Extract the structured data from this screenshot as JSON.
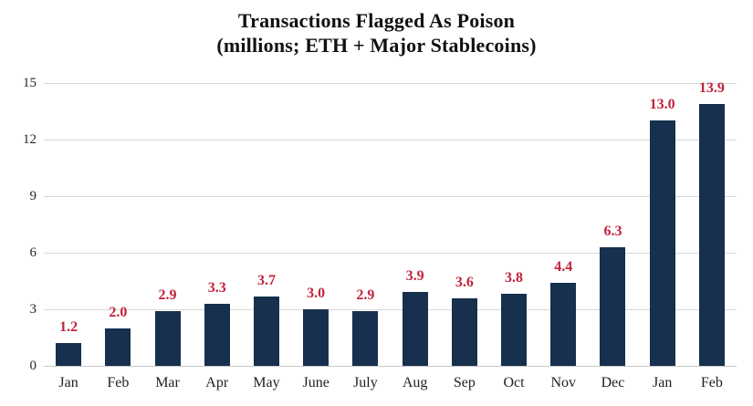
{
  "chart_data": {
    "type": "bar",
    "title": "Transactions Flagged As Poison",
    "subtitle": "(millions; ETH + Major Stablecoins)",
    "categories": [
      "Jan",
      "Feb",
      "Mar",
      "Apr",
      "May",
      "June",
      "July",
      "Aug",
      "Sep",
      "Oct",
      "Nov",
      "Dec",
      "Jan",
      "Feb"
    ],
    "values": [
      1.2,
      2.0,
      2.9,
      3.3,
      3.7,
      3.0,
      2.9,
      3.9,
      3.6,
      3.8,
      4.4,
      6.3,
      13.0,
      13.9
    ],
    "value_labels": [
      "1.2",
      "2.0",
      "2.9",
      "3.3",
      "3.7",
      "3.0",
      "2.9",
      "3.9",
      "3.6",
      "3.8",
      "4.4",
      "6.3",
      "13.0",
      "13.9"
    ],
    "xlabel": "",
    "ylabel": "",
    "ylim": [
      0,
      15
    ],
    "yticks": [
      0,
      3,
      6,
      9,
      12,
      15
    ],
    "grid": "horizontal",
    "legend": "none",
    "colors": {
      "bar": "#16304E",
      "value_label": "#C2233A",
      "gridline": "#D9D9D9",
      "axis_text": "#262626",
      "title_text": "#111111",
      "background": "#FFFFFF"
    }
  }
}
